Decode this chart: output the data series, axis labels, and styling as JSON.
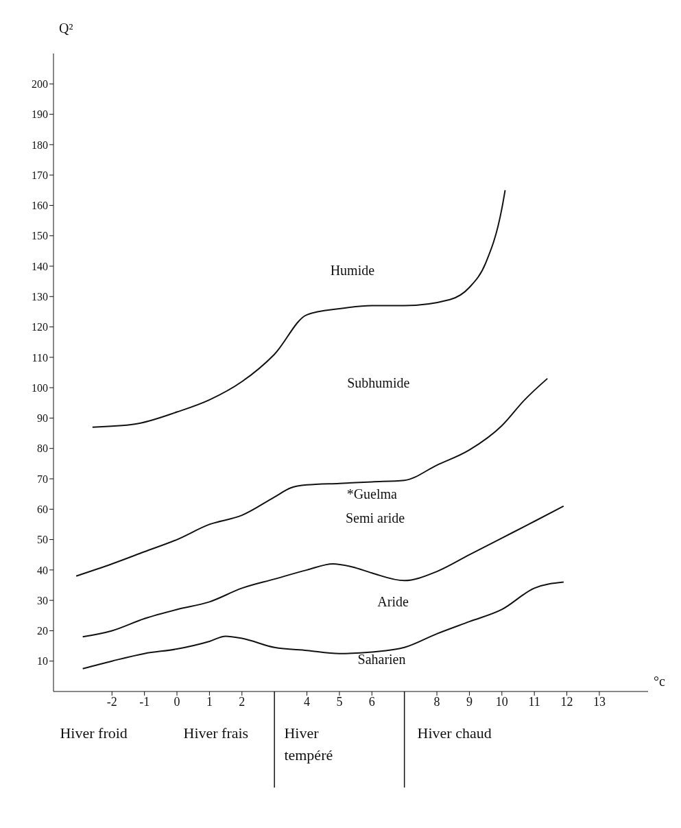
{
  "chart_data": {
    "type": "line",
    "ylabel": "Q²",
    "xlabel": "°c",
    "xlim": [
      -3.8,
      14.5
    ],
    "ylim": [
      0,
      210
    ],
    "xticks": [
      -2,
      -1,
      0,
      1,
      2,
      4,
      5,
      6,
      8,
      9,
      10,
      11,
      12,
      13
    ],
    "yticks": [
      10,
      20,
      30,
      40,
      50,
      60,
      70,
      80,
      90,
      100,
      110,
      120,
      130,
      140,
      150,
      160,
      170,
      180,
      190,
      200
    ],
    "marker": "none",
    "line_style": "solid",
    "series": [
      {
        "color": "#111111",
        "x": [
          -2.6,
          -1.3,
          0,
          1,
          2,
          3,
          4,
          5,
          6,
          7,
          8.4,
          9,
          9.5,
          10,
          10.1
        ],
        "values": [
          87,
          88,
          92,
          96,
          102,
          111,
          124,
          126,
          127,
          127,
          129,
          133,
          141,
          159,
          165
        ]
      },
      {
        "color": "#111111",
        "x": [
          -3.1,
          -2,
          -1,
          0,
          1,
          2,
          3,
          3.5,
          4,
          5,
          6,
          7,
          8,
          9,
          10,
          10.7,
          11.4
        ],
        "values": [
          38,
          42,
          46,
          50,
          55,
          58,
          64,
          67,
          68,
          68.5,
          69,
          69.5,
          74.5,
          79.5,
          87.5,
          96,
          103
        ]
      },
      {
        "color": "#111111",
        "x": [
          -2.9,
          -2,
          -1,
          0,
          1,
          2,
          3,
          4,
          4.8,
          5.4,
          6,
          7,
          8,
          9,
          10,
          11,
          11.9
        ],
        "values": [
          18,
          20,
          24,
          27,
          29.5,
          34,
          37,
          40,
          42,
          41,
          39,
          36.5,
          39.5,
          45,
          50.5,
          56,
          61
        ]
      },
      {
        "color": "#111111",
        "x": [
          -2.9,
          -2,
          -1,
          0,
          1,
          1.5,
          2,
          3,
          4,
          5,
          6,
          7,
          8,
          9,
          10,
          11,
          11.9
        ],
        "values": [
          7.5,
          10,
          12.5,
          14,
          16.5,
          18.2,
          17.5,
          14.5,
          13.5,
          12.5,
          13,
          14.5,
          19,
          23,
          27,
          34,
          36
        ]
      }
    ],
    "annotations": [
      "Humide",
      "Subhumide",
      "*Guelma",
      "Semi aride",
      "Aride",
      "Saharien",
      "Hiver froid",
      "Hiver frais",
      "Hiver tempéré",
      "Hiver chaud"
    ]
  }
}
